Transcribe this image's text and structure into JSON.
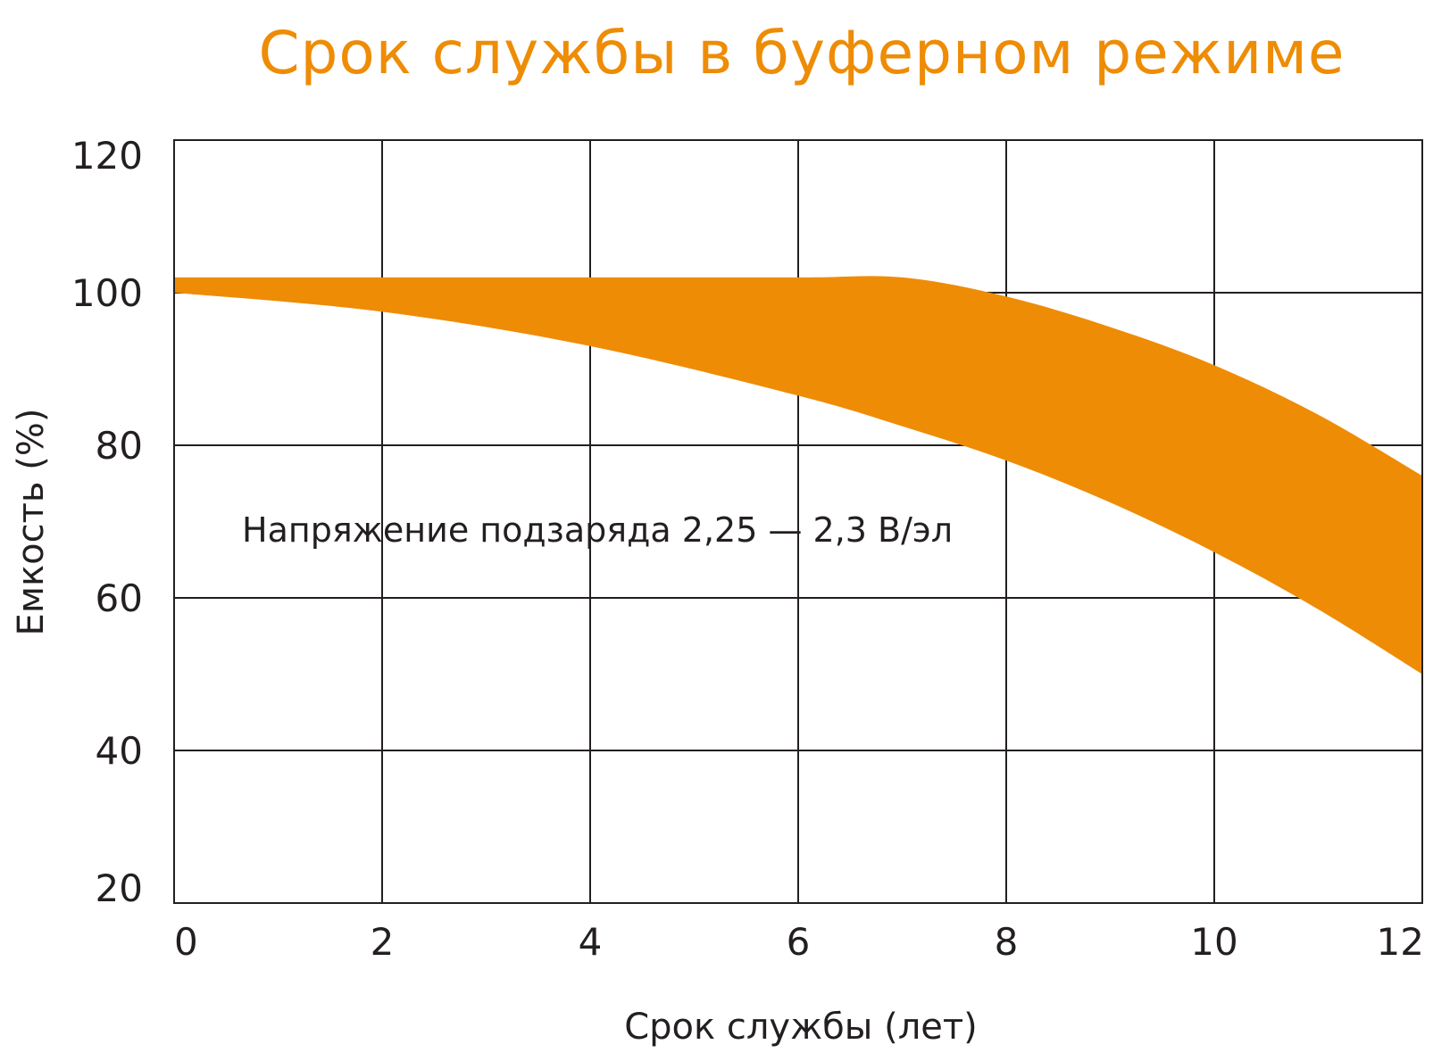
{
  "chart_data": {
    "type": "area",
    "title": "Срок службы в буферном режиме",
    "xlabel": "Срок службы (лет)",
    "ylabel": "Емкость (%)",
    "xlim": [
      0,
      12
    ],
    "ylim": [
      20,
      120
    ],
    "x_ticks": [
      "0",
      "2",
      "4",
      "6",
      "8",
      "10",
      "12"
    ],
    "y_ticks": [
      "20",
      "40",
      "60",
      "80",
      "100",
      "120"
    ],
    "grid": true,
    "annotation": "Напряжение подзаряда 2,25 — 2,3 В/эл",
    "band": {
      "upper": [
        {
          "x": 0,
          "y": 102
        },
        {
          "x": 2,
          "y": 102
        },
        {
          "x": 4,
          "y": 102
        },
        {
          "x": 6,
          "y": 102
        },
        {
          "x": 7,
          "y": 102
        },
        {
          "x": 8,
          "y": 99.5
        },
        {
          "x": 9,
          "y": 95.5
        },
        {
          "x": 10,
          "y": 90.5
        },
        {
          "x": 11,
          "y": 84
        },
        {
          "x": 12,
          "y": 76
        }
      ],
      "lower": [
        {
          "x": 0,
          "y": 100
        },
        {
          "x": 2,
          "y": 97.5
        },
        {
          "x": 4,
          "y": 93
        },
        {
          "x": 6,
          "y": 86.5
        },
        {
          "x": 7,
          "y": 82.5
        },
        {
          "x": 8,
          "y": 78
        },
        {
          "x": 9,
          "y": 72.5
        },
        {
          "x": 10,
          "y": 66
        },
        {
          "x": 11,
          "y": 58.5
        },
        {
          "x": 12,
          "y": 50
        }
      ]
    },
    "colors": {
      "band": "#ee8c06",
      "title": "#ee8c06",
      "text": "#231f20",
      "grid": "#231f20"
    }
  }
}
